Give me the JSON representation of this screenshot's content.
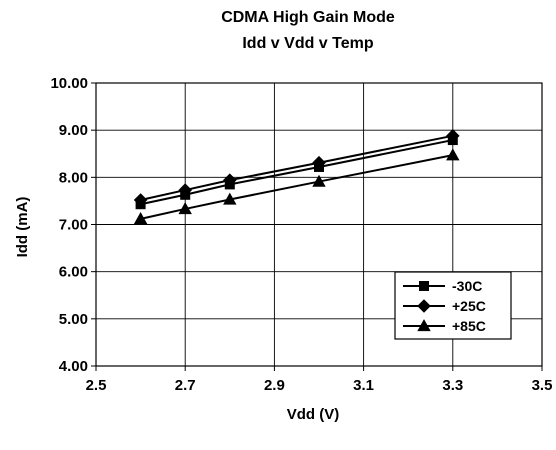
{
  "chart_data": {
    "type": "line",
    "title": "CDMA High Gain Mode",
    "subtitle": "Idd v Vdd v Temp",
    "xlabel": "Vdd (V)",
    "ylabel": "Idd (mA)",
    "xlim": [
      2.5,
      3.5
    ],
    "ylim": [
      4.0,
      10.0
    ],
    "xticks": [
      2.5,
      2.7,
      2.9,
      3.1,
      3.3,
      3.5
    ],
    "xtick_labels": [
      "2.5",
      "2.7",
      "2.9",
      "3.1",
      "3.3",
      "3.5"
    ],
    "yticks": [
      4.0,
      5.0,
      6.0,
      7.0,
      8.0,
      9.0,
      10.0
    ],
    "ytick_labels": [
      "4.00",
      "5.00",
      "6.00",
      "7.00",
      "8.00",
      "9.00",
      "10.00"
    ],
    "grid": true,
    "legend_position": "bottom-right",
    "series": [
      {
        "name": "-30C",
        "marker": "square",
        "color": "#000000",
        "x": [
          2.6,
          2.7,
          2.8,
          3.0,
          3.3
        ],
        "y": [
          7.43,
          7.63,
          7.85,
          8.22,
          8.79
        ]
      },
      {
        "name": "+25C",
        "marker": "diamond",
        "color": "#000000",
        "x": [
          2.6,
          2.7,
          2.8,
          3.0,
          3.3
        ],
        "y": [
          7.52,
          7.73,
          7.94,
          8.31,
          8.88
        ]
      },
      {
        "name": "+85C",
        "marker": "triangle",
        "color": "#000000",
        "x": [
          2.6,
          2.7,
          2.8,
          3.0,
          3.3
        ],
        "y": [
          7.12,
          7.33,
          7.53,
          7.91,
          8.47
        ]
      }
    ]
  }
}
